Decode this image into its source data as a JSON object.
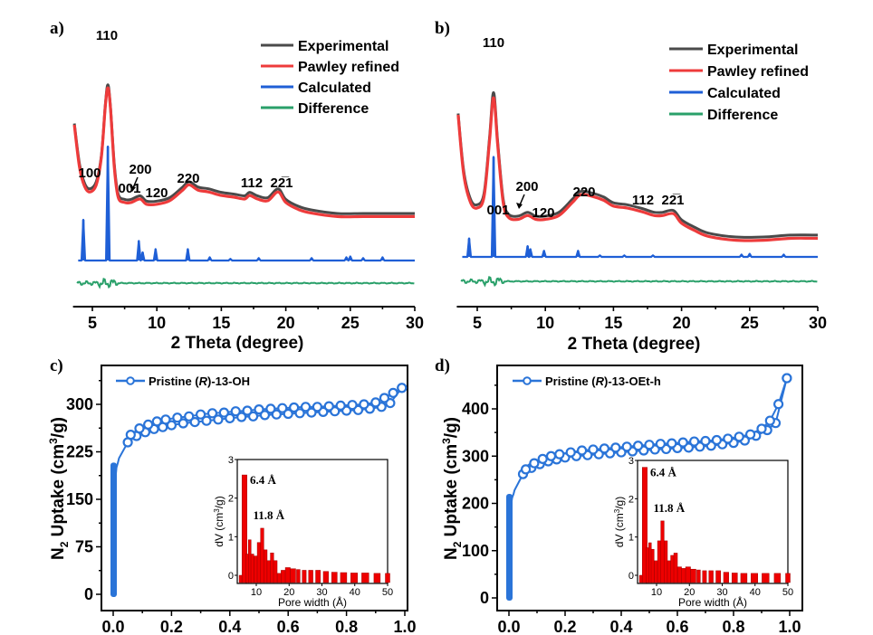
{
  "figure": {
    "panel_labels": [
      "a)",
      "b)",
      "c)",
      "d)"
    ]
  },
  "colors": {
    "experimental": "#4a4a4a",
    "pawley": "#ee3b3b",
    "calculated": "#1f5fd6",
    "difference": "#2aa06a",
    "isotherm": "#2a74d8",
    "pore_bar": "#ee0000"
  },
  "chart_data": [
    {
      "id": "a",
      "type": "line",
      "panel_label": "a)",
      "xlabel": "2 Theta (degree)",
      "ylabel": "",
      "xlim": [
        3.5,
        30
      ],
      "xticks": [
        5,
        10,
        15,
        20,
        25,
        30
      ],
      "y_axis_shown": false,
      "legend": [
        "Experimental",
        "Pawley refined",
        "Calculated",
        "Difference"
      ],
      "legend_position": "top-right",
      "peak_labels": [
        {
          "text": "110",
          "x": 6.2
        },
        {
          "text": "100",
          "x": 4.4
        },
        {
          "text": "001",
          "x": 8.1
        },
        {
          "text": "200",
          "x": 8.8
        },
        {
          "text": "120",
          "x": 10.0
        },
        {
          "text": "220",
          "x": 12.4
        },
        {
          "text": "112",
          "x": 17.2
        },
        {
          "text": "22̅1",
          "x": 19.5
        }
      ],
      "series": [
        {
          "name": "Experimental",
          "x": [
            3.6,
            4.0,
            4.4,
            4.8,
            5.3,
            5.7,
            6.0,
            6.2,
            6.4,
            6.7,
            7.0,
            7.5,
            8.0,
            8.7,
            9.2,
            10.0,
            11.0,
            12.0,
            12.5,
            13.2,
            14.0,
            15.0,
            16.0,
            16.8,
            17.2,
            17.8,
            18.6,
            19.4,
            20.0,
            21.0,
            22.0,
            24.0,
            26.0,
            28.0,
            30.0
          ],
          "y": [
            0.78,
            0.55,
            0.44,
            0.41,
            0.45,
            0.6,
            0.88,
            1.0,
            0.88,
            0.55,
            0.38,
            0.35,
            0.35,
            0.37,
            0.34,
            0.34,
            0.36,
            0.42,
            0.45,
            0.42,
            0.41,
            0.39,
            0.38,
            0.37,
            0.39,
            0.37,
            0.36,
            0.41,
            0.35,
            0.31,
            0.29,
            0.27,
            0.27,
            0.27,
            0.27
          ]
        },
        {
          "name": "Pawley refined",
          "x": [
            3.6,
            4.0,
            4.4,
            4.8,
            5.3,
            5.7,
            6.0,
            6.2,
            6.4,
            6.7,
            7.0,
            7.5,
            8.0,
            8.7,
            9.2,
            10.0,
            11.0,
            12.0,
            12.5,
            13.2,
            14.0,
            15.0,
            16.0,
            16.8,
            17.2,
            17.8,
            18.6,
            19.4,
            20.0,
            21.0,
            22.0,
            24.0,
            26.0,
            28.0,
            30.0
          ],
          "y": [
            0.78,
            0.54,
            0.43,
            0.4,
            0.44,
            0.6,
            0.88,
            0.99,
            0.88,
            0.54,
            0.37,
            0.34,
            0.34,
            0.36,
            0.33,
            0.33,
            0.35,
            0.41,
            0.44,
            0.41,
            0.4,
            0.38,
            0.37,
            0.36,
            0.38,
            0.36,
            0.35,
            0.4,
            0.34,
            0.3,
            0.28,
            0.26,
            0.26,
            0.26,
            0.26
          ]
        },
        {
          "name": "Calculated",
          "peaks": [
            [
              4.3,
              0.25
            ],
            [
              6.2,
              0.7
            ],
            [
              8.6,
              0.12
            ],
            [
              8.9,
              0.05
            ],
            [
              9.9,
              0.07
            ],
            [
              12.4,
              0.07
            ],
            [
              14.1,
              0.02
            ],
            [
              15.7,
              0.01
            ],
            [
              17.9,
              0.015
            ],
            [
              22.0,
              0.015
            ],
            [
              24.7,
              0.02
            ],
            [
              25.0,
              0.025
            ],
            [
              26.0,
              0.015
            ],
            [
              27.5,
              0.02
            ]
          ],
          "baseline": 0.0
        },
        {
          "name": "Difference",
          "note": "flat residual near zero with small oscillations at 4–7 degrees"
        }
      ]
    },
    {
      "id": "b",
      "type": "line",
      "panel_label": "b)",
      "xlabel": "2 Theta (degree)",
      "ylabel": "",
      "xlim": [
        3.5,
        30
      ],
      "xticks": [
        5,
        10,
        15,
        20,
        25,
        30
      ],
      "y_axis_shown": false,
      "legend": [
        "Experimental",
        "Pawley refined",
        "Calculated",
        "Difference"
      ],
      "legend_position": "top-right",
      "peak_labels": [
        {
          "text": "110",
          "x": 6.2
        },
        {
          "text": "001",
          "x": 8.0
        },
        {
          "text": "200",
          "x": 8.8
        },
        {
          "text": "120",
          "x": 10.0
        },
        {
          "text": "220",
          "x": 12.6
        },
        {
          "text": "112",
          "x": 17.1
        },
        {
          "text": "22̅1",
          "x": 19.4
        }
      ],
      "series": [
        {
          "name": "Experimental",
          "x": [
            3.6,
            4.0,
            4.5,
            5.0,
            5.5,
            5.9,
            6.2,
            6.5,
            6.9,
            7.3,
            8.0,
            8.7,
            9.3,
            10.0,
            11.0,
            12.0,
            12.6,
            13.5,
            14.3,
            15.0,
            16.0,
            17.1,
            18.0,
            18.6,
            19.4,
            20.0,
            21.0,
            22.0,
            24.0,
            26.0,
            28.0,
            30.0
          ],
          "y": [
            0.85,
            0.55,
            0.4,
            0.37,
            0.43,
            0.72,
            0.96,
            0.7,
            0.4,
            0.32,
            0.31,
            0.33,
            0.31,
            0.31,
            0.33,
            0.4,
            0.44,
            0.43,
            0.41,
            0.38,
            0.37,
            0.35,
            0.33,
            0.33,
            0.34,
            0.29,
            0.25,
            0.22,
            0.2,
            0.2,
            0.21,
            0.21
          ]
        },
        {
          "name": "Pawley refined",
          "x": [
            3.6,
            4.0,
            4.5,
            5.0,
            5.5,
            5.9,
            6.2,
            6.5,
            6.9,
            7.3,
            8.0,
            8.7,
            9.3,
            10.0,
            11.0,
            12.0,
            12.6,
            13.5,
            14.3,
            15.0,
            16.0,
            17.1,
            18.0,
            18.6,
            19.4,
            20.0,
            21.0,
            22.0,
            24.0,
            26.0,
            28.0,
            30.0
          ],
          "y": [
            0.85,
            0.54,
            0.39,
            0.36,
            0.42,
            0.71,
            0.94,
            0.69,
            0.39,
            0.31,
            0.3,
            0.32,
            0.3,
            0.3,
            0.32,
            0.39,
            0.43,
            0.42,
            0.4,
            0.37,
            0.36,
            0.34,
            0.32,
            0.32,
            0.33,
            0.28,
            0.24,
            0.21,
            0.19,
            0.19,
            0.2,
            0.2
          ]
        },
        {
          "name": "Calculated",
          "peaks": [
            [
              4.4,
              0.12
            ],
            [
              6.2,
              0.65
            ],
            [
              8.7,
              0.07
            ],
            [
              8.9,
              0.05
            ],
            [
              9.9,
              0.04
            ],
            [
              12.4,
              0.04
            ],
            [
              14.0,
              0.01
            ],
            [
              15.8,
              0.01
            ],
            [
              17.9,
              0.01
            ],
            [
              24.4,
              0.015
            ],
            [
              25.0,
              0.02
            ],
            [
              27.5,
              0.015
            ]
          ],
          "baseline": 0.0
        },
        {
          "name": "Difference",
          "note": "flat residual near zero with small oscillations at 4–7 degrees"
        }
      ]
    },
    {
      "id": "c",
      "type": "scatter",
      "panel_label": "c)",
      "xlabel": "",
      "ylabel": "N2 Uptake (cm3/g)",
      "xlim": [
        -0.04,
        1.04
      ],
      "ylim": [
        -25,
        340
      ],
      "xticks": [
        0.0,
        0.2,
        0.4,
        0.6,
        0.8,
        1.0
      ],
      "yticks": [
        0,
        75,
        150,
        225,
        300
      ],
      "legend": [
        "Pristine (R)-13-OH"
      ],
      "legend_position": "top-left",
      "adsorption": {
        "x": [
          0.0,
          0.0,
          0.0,
          0.0,
          0.002,
          0.005,
          0.01,
          0.02,
          0.05,
          0.08,
          0.11,
          0.14,
          0.17,
          0.2,
          0.24,
          0.28,
          0.32,
          0.36,
          0.4,
          0.44,
          0.48,
          0.52,
          0.56,
          0.6,
          0.64,
          0.68,
          0.72,
          0.76,
          0.8,
          0.84,
          0.88,
          0.92,
          0.95,
          0.99
        ],
        "y": [
          2,
          50,
          100,
          150,
          185,
          200,
          208,
          215,
          240,
          250,
          256,
          261,
          264,
          267,
          270,
          272,
          274,
          276,
          278,
          280,
          281,
          283,
          284,
          285,
          286,
          287,
          288,
          289,
          290,
          291,
          293,
          296,
          302,
          326
        ]
      },
      "desorption": {
        "x": [
          0.99,
          0.96,
          0.93,
          0.9,
          0.86,
          0.82,
          0.78,
          0.74,
          0.7,
          0.66,
          0.62,
          0.58,
          0.54,
          0.5,
          0.46,
          0.42,
          0.38,
          0.34,
          0.3,
          0.26,
          0.22,
          0.18,
          0.15,
          0.12,
          0.09,
          0.06
        ],
        "y": [
          326,
          318,
          310,
          303,
          300,
          299,
          298,
          297,
          296,
          296,
          295,
          294,
          293,
          292,
          290,
          289,
          287,
          286,
          284,
          281,
          279,
          276,
          273,
          268,
          262,
          252
        ]
      },
      "inset": {
        "type": "bar",
        "xlabel": "Pore width (Å)",
        "ylabel": "dV (cm3/g)",
        "xlim": [
          5,
          50
        ],
        "ylim": [
          -0.15,
          3
        ],
        "xticks": [
          10,
          20,
          30,
          40,
          50
        ],
        "yticks": [
          0,
          1,
          2,
          3
        ],
        "annotations": [
          {
            "text": "6.4 Å",
            "x": 6.4,
            "y": 2.6
          },
          {
            "text": "11.8 Å",
            "x": 11.8,
            "y": 1.22
          }
        ],
        "x": [
          5.2,
          6.4,
          7.2,
          8.0,
          8.8,
          9.8,
          10.8,
          11.8,
          12.8,
          13.8,
          14.8,
          15.8,
          17.0,
          18.2,
          19.6,
          21.2,
          22.8,
          24.6,
          26.6,
          28.8,
          31.2,
          33.8,
          36.6,
          39.8,
          43.2,
          46.8,
          50.0
        ],
        "values": [
          0.0,
          2.6,
          0.55,
          0.92,
          0.55,
          0.5,
          0.85,
          1.22,
          0.66,
          0.38,
          0.58,
          0.38,
          0.05,
          0.13,
          0.2,
          0.17,
          0.15,
          0.13,
          0.13,
          0.13,
          0.1,
          0.08,
          0.07,
          0.06,
          0.06,
          0.05,
          0.05
        ]
      }
    },
    {
      "id": "d",
      "type": "scatter",
      "panel_label": "d)",
      "xlabel": "",
      "ylabel": "N2 Uptake (cm3/g)",
      "xlim": [
        -0.04,
        1.04
      ],
      "ylim": [
        -25,
        490
      ],
      "xticks": [
        0.0,
        0.2,
        0.4,
        0.6,
        0.8,
        1.0
      ],
      "yticks": [
        0,
        100,
        200,
        300,
        400
      ],
      "legend": [
        "Pristine (R)-13-OEt-h"
      ],
      "legend_position": "top-left",
      "adsorption": {
        "x": [
          0.0,
          0.0,
          0.0,
          0.0,
          0.002,
          0.005,
          0.01,
          0.02,
          0.05,
          0.08,
          0.11,
          0.14,
          0.17,
          0.2,
          0.24,
          0.28,
          0.32,
          0.36,
          0.4,
          0.44,
          0.48,
          0.52,
          0.56,
          0.6,
          0.64,
          0.68,
          0.72,
          0.76,
          0.8,
          0.84,
          0.88,
          0.92,
          0.95,
          0.99
        ],
        "y": [
          2,
          60,
          120,
          170,
          200,
          212,
          220,
          228,
          262,
          275,
          283,
          289,
          293,
          297,
          300,
          302,
          304,
          306,
          308,
          310,
          312,
          314,
          315,
          317,
          318,
          320,
          322,
          325,
          328,
          333,
          343,
          355,
          370,
          465
        ]
      },
      "desorption": {
        "x": [
          0.99,
          0.96,
          0.93,
          0.9,
          0.86,
          0.82,
          0.78,
          0.74,
          0.7,
          0.66,
          0.62,
          0.58,
          0.54,
          0.5,
          0.46,
          0.42,
          0.38,
          0.34,
          0.3,
          0.26,
          0.22,
          0.18,
          0.15,
          0.12,
          0.09,
          0.06
        ],
        "y": [
          465,
          410,
          375,
          358,
          346,
          341,
          337,
          334,
          332,
          331,
          329,
          327,
          326,
          324,
          322,
          320,
          318,
          316,
          314,
          312,
          308,
          304,
          300,
          294,
          285,
          272
        ]
      },
      "inset": {
        "type": "bar",
        "xlabel": "Pore width (Å)",
        "ylabel": "dV (cm3/g)",
        "xlim": [
          5,
          50
        ],
        "ylim": [
          -0.15,
          3
        ],
        "xticks": [
          10,
          20,
          30,
          40,
          50
        ],
        "yticks": [
          0,
          1,
          2,
          3
        ],
        "annotations": [
          {
            "text": "6.4 Å",
            "x": 6.4,
            "y": 2.82
          },
          {
            "text": "11.8 Å",
            "x": 11.8,
            "y": 1.42
          }
        ],
        "x": [
          5.2,
          6.4,
          7.2,
          8.0,
          8.8,
          9.8,
          10.8,
          11.8,
          12.8,
          13.8,
          14.8,
          15.8,
          17.0,
          18.2,
          19.6,
          21.2,
          22.8,
          24.6,
          26.6,
          28.8,
          31.2,
          33.8,
          36.6,
          39.8,
          43.2,
          46.8,
          50.0
        ],
        "values": [
          0.0,
          2.82,
          0.72,
          0.85,
          0.68,
          0.38,
          0.9,
          1.42,
          0.9,
          0.38,
          0.52,
          0.58,
          0.22,
          0.18,
          0.22,
          0.16,
          0.14,
          0.12,
          0.12,
          0.12,
          0.08,
          0.06,
          0.05,
          0.05,
          0.05,
          0.05,
          0.05
        ]
      }
    }
  ]
}
